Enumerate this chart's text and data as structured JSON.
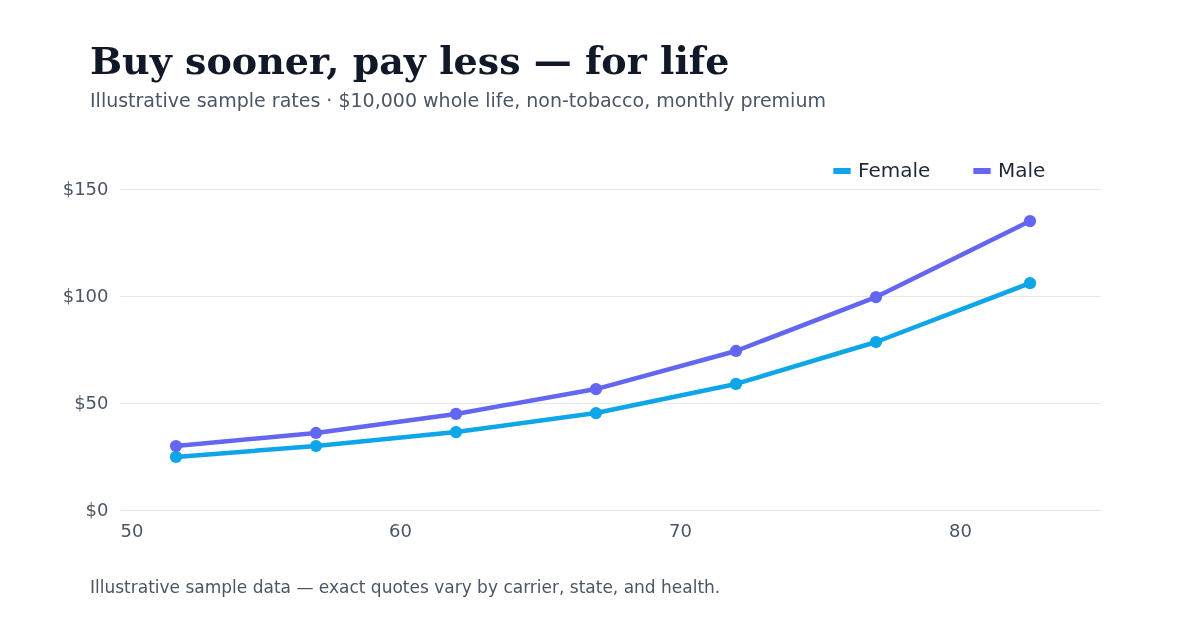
{
  "chart_data": {
    "type": "line",
    "title": "Buy sooner, pay less — for life",
    "subtitle": "Illustrative sample rates · $10,000 whole life, non-tobacco, monthly premium",
    "x": [
      52,
      57,
      62,
      67,
      72,
      77,
      82.5
    ],
    "series": [
      {
        "name": "Female",
        "color": "#0ea5e9",
        "values": [
          24.8,
          29.9,
          36.4,
          45.3,
          58.9,
          78.5,
          106
        ]
      },
      {
        "name": "Male",
        "color": "#6366f1",
        "values": [
          29.9,
          36,
          44.9,
          56.5,
          74.3,
          99.5,
          135
        ]
      }
    ],
    "xlim": [
      50,
      85
    ],
    "xticks": [
      50,
      60,
      70,
      80
    ],
    "ylim": [
      0,
      150
    ],
    "yticks": [
      {
        "value": 0,
        "label": "$0"
      },
      {
        "value": 50,
        "label": "$50"
      },
      {
        "value": 100,
        "label": "$100"
      },
      {
        "value": 150,
        "label": "$150"
      }
    ],
    "grid": "y",
    "legend": "top right",
    "marker": "circle",
    "line_style": "solid",
    "annotations": [
      "Illustrative sample data — exact quotes vary by carrier, state, and health."
    ]
  }
}
